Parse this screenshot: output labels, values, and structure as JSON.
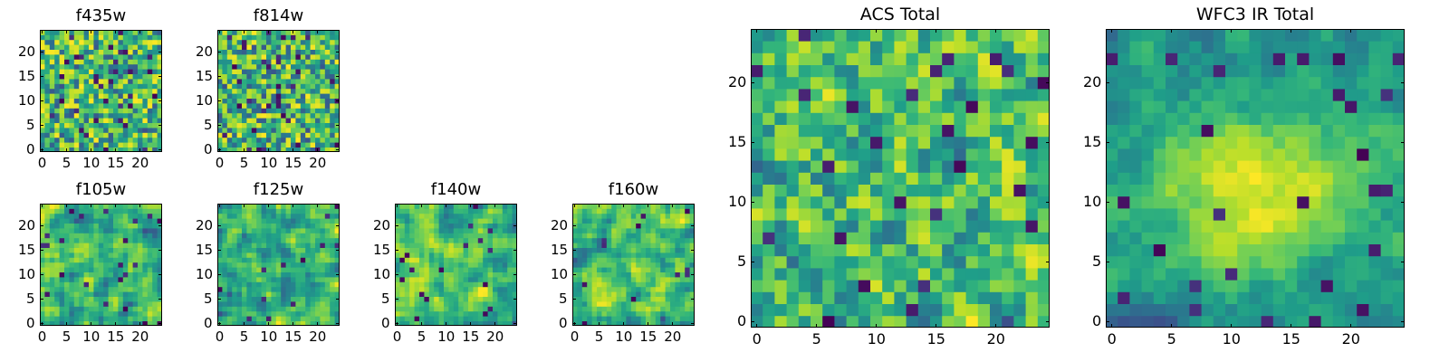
{
  "figure": {
    "colormap": "viridis"
  },
  "chart_data": [
    {
      "type": "heatmap",
      "title": "f435w",
      "grid_size": 25,
      "xlim": [
        0,
        24
      ],
      "ylim": [
        0,
        24
      ],
      "xticks": [
        0,
        5,
        10,
        15,
        20
      ],
      "yticks": [
        0,
        5,
        10,
        15,
        20
      ],
      "seed": 11,
      "style": "noise",
      "dark_fraction": 0.05
    },
    {
      "type": "heatmap",
      "title": "f814w",
      "grid_size": 25,
      "xlim": [
        0,
        24
      ],
      "ylim": [
        0,
        24
      ],
      "xticks": [
        0,
        5,
        10,
        15,
        20
      ],
      "yticks": [
        0,
        5,
        10,
        15,
        20
      ],
      "seed": 23,
      "style": "noise",
      "dark_fraction": 0.05
    },
    {
      "type": "heatmap",
      "title": "f105w",
      "grid_size": 25,
      "xlim": [
        0,
        24
      ],
      "ylim": [
        0,
        24
      ],
      "xticks": [
        0,
        5,
        10,
        15,
        20
      ],
      "yticks": [
        0,
        5,
        10,
        15,
        20
      ],
      "seed": 37,
      "style": "smooth",
      "dark_fraction": 0.03
    },
    {
      "type": "heatmap",
      "title": "f125w",
      "grid_size": 25,
      "xlim": [
        0,
        24
      ],
      "ylim": [
        0,
        24
      ],
      "xticks": [
        0,
        5,
        10,
        15,
        20
      ],
      "yticks": [
        0,
        5,
        10,
        15,
        20
      ],
      "seed": 41,
      "style": "smooth",
      "dark_fraction": 0.02
    },
    {
      "type": "heatmap",
      "title": "f140w",
      "grid_size": 25,
      "xlim": [
        0,
        24
      ],
      "ylim": [
        0,
        24
      ],
      "xticks": [
        0,
        5,
        10,
        15,
        20
      ],
      "yticks": [
        0,
        5,
        10,
        15,
        20
      ],
      "seed": 53,
      "style": "smooth",
      "dark_fraction": 0.03
    },
    {
      "type": "heatmap",
      "title": "f160w",
      "grid_size": 25,
      "xlim": [
        0,
        24
      ],
      "ylim": [
        0,
        24
      ],
      "xticks": [
        0,
        5,
        10,
        15,
        20
      ],
      "yticks": [
        0,
        5,
        10,
        15,
        20
      ],
      "seed": 67,
      "style": "smooth",
      "dark_fraction": 0.02
    },
    {
      "type": "heatmap",
      "title": "ACS Total",
      "grid_size": 25,
      "xlim": [
        0,
        24
      ],
      "ylim": [
        0,
        24
      ],
      "xticks": [
        0,
        5,
        10,
        15,
        20
      ],
      "yticks": [
        0,
        5,
        10,
        15,
        20
      ],
      "seed": 79,
      "style": "blocky",
      "dark_fraction": 0.03
    },
    {
      "type": "heatmap",
      "title": "WFC3 IR Total",
      "grid_size": 25,
      "xlim": [
        0,
        24
      ],
      "ylim": [
        0,
        24
      ],
      "xticks": [
        0,
        5,
        10,
        15,
        20
      ],
      "yticks": [
        0,
        5,
        10,
        15,
        20
      ],
      "seed": 97,
      "style": "blob",
      "dark_fraction": 0.03
    }
  ]
}
